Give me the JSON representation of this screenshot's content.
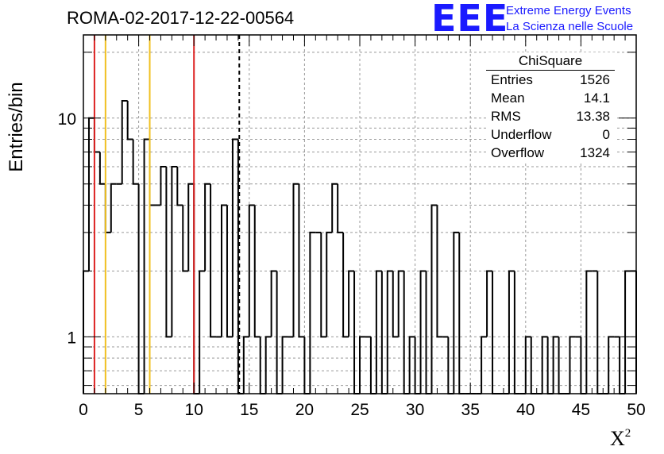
{
  "header": {
    "run_title": "ROMA-02-2017-12-22-00564",
    "logo_text": "EEE",
    "logo_line1": "Extreme Energy Events",
    "logo_line2": "La Scienza nelle Scuole"
  },
  "stats_box": {
    "title": "ChiSquare",
    "rows": [
      {
        "label": "Entries",
        "value": "1526"
      },
      {
        "label": "Mean",
        "value": "14.1"
      },
      {
        "label": "RMS",
        "value": "13.38"
      },
      {
        "label": "Underflow",
        "value": "0"
      },
      {
        "label": "Overflow",
        "value": "1324"
      }
    ]
  },
  "colors": {
    "histogram": "#000000",
    "red_line": "#dd2222",
    "yellow_line": "#f0c020",
    "mean_line": "#000000",
    "grid": "#999999",
    "logo": "#1a1aff"
  },
  "chart_data": {
    "type": "histogram",
    "xlabel": "X",
    "xlabel_sup": "2",
    "ylabel": "Entries/bin",
    "xlim": [
      0,
      50
    ],
    "ylim": [
      0.55,
      24
    ],
    "y_scale": "log",
    "grid": true,
    "bin_width": 0.5,
    "x_ticks": [
      "0",
      "5",
      "10",
      "15",
      "20",
      "25",
      "30",
      "35",
      "40",
      "45",
      "50"
    ],
    "y_ticks": [
      "1",
      "10"
    ],
    "values": [
      2,
      10,
      7,
      5,
      3,
      5,
      5,
      12,
      8,
      5,
      0,
      8,
      4,
      4,
      6,
      1,
      6,
      4,
      2,
      5,
      0,
      2,
      5,
      1,
      1,
      4,
      1,
      8,
      0,
      1,
      4,
      1,
      0,
      1,
      2,
      0,
      1,
      1,
      5,
      1,
      0,
      3,
      3,
      1,
      3,
      5,
      3,
      1,
      2,
      0,
      1,
      1,
      0,
      2,
      0,
      2,
      1,
      2,
      0,
      1,
      0,
      2,
      0,
      4,
      1,
      1,
      0,
      3,
      0,
      0,
      0,
      0,
      1,
      2,
      0,
      0,
      0,
      2,
      0,
      0,
      1,
      0,
      0,
      1,
      0,
      1,
      0,
      0,
      1,
      1,
      0,
      2,
      2,
      0,
      0,
      1,
      1,
      0,
      2,
      2
    ],
    "vertical_lines": [
      {
        "x": 1,
        "color": "#dd2222",
        "style": "solid"
      },
      {
        "x": 10,
        "color": "#dd2222",
        "style": "solid"
      },
      {
        "x": 2,
        "color": "#f0c020",
        "style": "solid"
      },
      {
        "x": 6,
        "color": "#f0c020",
        "style": "solid"
      },
      {
        "x": 14.1,
        "color": "#000000",
        "style": "dashed"
      }
    ]
  }
}
